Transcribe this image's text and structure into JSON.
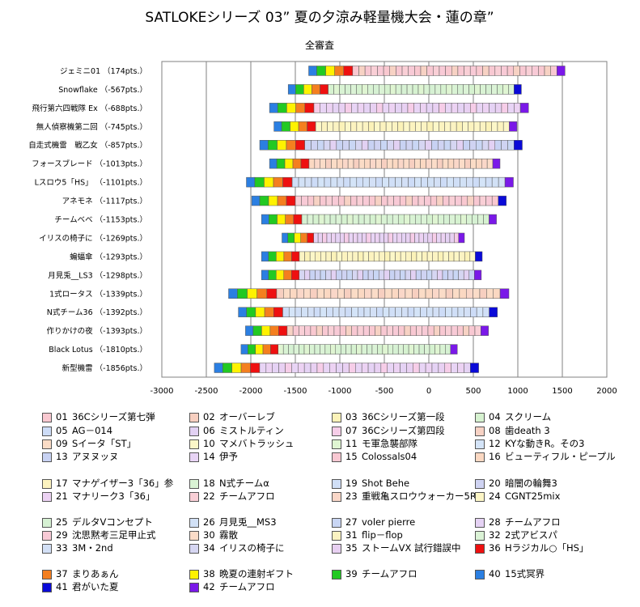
{
  "chart_data": {
    "type": "bar",
    "title": "SATLOKEシリーズ 03” 夏の夕涼み軽量機大会・蓮の章”",
    "subtitle": "全審査",
    "xlim": [
      -3000,
      2000
    ],
    "xticks": [
      "-3000",
      "-2500",
      "-2000",
      "-1500",
      "-1000",
      "-500",
      "0",
      "500",
      "1000",
      "1500",
      "2000"
    ],
    "grid": true,
    "legend_position": "bottom",
    "categories": [
      "ジェミニ01 （174pts.）",
      "Snowflake （-567pts.）",
      "飛行第六四戦隊 Ex （-688pts.）",
      "無人偵察機第二回 （-745pts.）",
      "自走式機雷　戦乙女 （-857pts.）",
      "フォースブレード （-1013pts.）",
      "Lスロウ5「HS」 （-1101pts.）",
      "アネモネ （-1117pts.）",
      "チームベベ （-1153pts.）",
      "イリスの椅子に （-1269pts.）",
      "蝙蝠傘 （-1293pts.）",
      "月見兎__LS3 （-1298pts.）",
      "1式ロータス （-1339pts.）",
      "N式チーム36 （-1392pts.）",
      "作りかけの夜 （-1393pts.）",
      "Black Lotus （-1810pts.）",
      "新型機雷 （-1856pts.）"
    ],
    "bar_ranges": [
      [
        -1350,
        1530
      ],
      [
        -1580,
        1040
      ],
      [
        -1790,
        1120
      ],
      [
        -1740,
        990
      ],
      [
        -1900,
        1050
      ],
      [
        -1790,
        800
      ],
      [
        -2050,
        950
      ],
      [
        -1990,
        870
      ],
      [
        -1880,
        760
      ],
      [
        -1650,
        400
      ],
      [
        -1880,
        600
      ],
      [
        -1880,
        590
      ],
      [
        -2250,
        900
      ],
      [
        -2140,
        770
      ],
      [
        -2060,
        670
      ],
      [
        -2110,
        320
      ],
      [
        -2410,
        560
      ]
    ],
    "series": [
      {
        "id": "01",
        "name": "36Cシリーズ第七弾",
        "color": "#f9c8d0"
      },
      {
        "id": "02",
        "name": "オーバーレブ",
        "color": "#f7cfc0"
      },
      {
        "id": "03",
        "name": "36Cシリーズ第一段",
        "color": "#fbf2b8"
      },
      {
        "id": "04",
        "name": "スクリーム",
        "color": "#d6f2d0"
      },
      {
        "id": "05",
        "name": "AG－014",
        "color": "#cddcf7"
      },
      {
        "id": "06",
        "name": "ミストルティン",
        "color": "#e2d1f3"
      },
      {
        "id": "07",
        "name": "36Cシリーズ第四段",
        "color": "#f6cde8"
      },
      {
        "id": "08",
        "name": "歯death 3",
        "color": "#f7d2c4"
      },
      {
        "id": "09",
        "name": "Sイータ「ST」",
        "color": "#fbdcc6"
      },
      {
        "id": "10",
        "name": "マメバトラッシュ",
        "color": "#fcf7c8"
      },
      {
        "id": "11",
        "name": "モ軍急襲部隊",
        "color": "#dff5d2"
      },
      {
        "id": "12",
        "name": "KYな動きR。その3",
        "color": "#d4e4f8"
      },
      {
        "id": "13",
        "name": "アヌヌッヌ",
        "color": "#c8d2f3"
      },
      {
        "id": "14",
        "name": "伊予",
        "color": "#e8d4f5"
      },
      {
        "id": "15",
        "name": "Colossals04",
        "color": "#f8c8d2"
      },
      {
        "id": "16",
        "name": "ビューティフル・ピープル",
        "color": "#fbd8c2"
      },
      {
        "id": "17",
        "name": "マナゲイザー3「36」参",
        "color": "#fcf3bf"
      },
      {
        "id": "18",
        "name": "N式チームα",
        "color": "#d9f3d4"
      },
      {
        "id": "19",
        "name": "Shot Behe",
        "color": "#d0dff7"
      },
      {
        "id": "20",
        "name": "暗闇の輪舞3",
        "color": "#cfd3f2"
      },
      {
        "id": "21",
        "name": "マナリーク3「36」",
        "color": "#ecd2f3"
      },
      {
        "id": "22",
        "name": "チームアフロ",
        "color": "#f9cfd6"
      },
      {
        "id": "23",
        "name": "重戦亀スロウウォーカー5R",
        "color": "#fad7c8"
      },
      {
        "id": "24",
        "name": "CGNT25mix",
        "color": "#fdf6c6"
      },
      {
        "id": "25",
        "name": "デルタVコンセプト",
        "color": "#d6f1d3"
      },
      {
        "id": "26",
        "name": "月見兎__MS3",
        "color": "#d2e1f6"
      },
      {
        "id": "27",
        "name": "voler pierre",
        "color": "#c9d6f4"
      },
      {
        "id": "28",
        "name": "チームアフロ",
        "color": "#e5d2f4"
      },
      {
        "id": "29",
        "name": "沈思黙考三足甲止式",
        "color": "#f8cad6"
      },
      {
        "id": "30",
        "name": "霧散",
        "color": "#fbdcc8"
      },
      {
        "id": "31",
        "name": "flip－flop",
        "color": "#fbf3c2"
      },
      {
        "id": "32",
        "name": "2式アビスパ",
        "color": "#dbf3d6"
      },
      {
        "id": "33",
        "name": "3M・2nd",
        "color": "#d3e0f6"
      },
      {
        "id": "34",
        "name": "イリスの椅子に",
        "color": "#d6d6f2"
      },
      {
        "id": "35",
        "name": "ストームVX 試行錯誤中",
        "color": "#e8d0f2"
      },
      {
        "id": "36",
        "name": "Hラジカル○「HS」",
        "color": "#ee1010"
      },
      {
        "id": "37",
        "name": "まりあぁん",
        "color": "#f47f1f"
      },
      {
        "id": "38",
        "name": "晩夏の連射ギフト",
        "color": "#fff200"
      },
      {
        "id": "39",
        "name": "チームアフロ",
        "color": "#22c922"
      },
      {
        "id": "40",
        "name": "15式冥界",
        "color": "#2b7fe2"
      },
      {
        "id": "41",
        "name": "君がいた夏",
        "color": "#0a0ad8"
      },
      {
        "id": "42",
        "name": "チームアフロ",
        "color": "#7a18e8"
      }
    ]
  }
}
